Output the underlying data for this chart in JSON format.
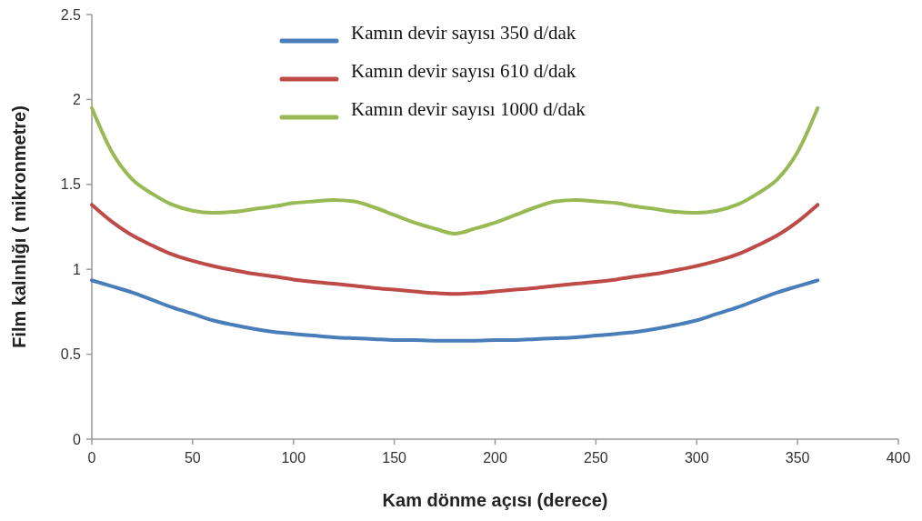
{
  "chart_data": {
    "type": "line",
    "xlabel": "Kam dönme açısı (derece)",
    "ylabel": "Film kalınlığı ( mikronmetre)",
    "x": [
      0,
      10,
      20,
      30,
      40,
      50,
      60,
      70,
      80,
      90,
      100,
      110,
      120,
      130,
      140,
      150,
      160,
      170,
      180,
      190,
      200,
      210,
      220,
      230,
      240,
      250,
      260,
      270,
      280,
      290,
      300,
      310,
      320,
      330,
      340,
      350,
      360
    ],
    "series": [
      {
        "name": "Kamın devir sayısı 350 d/dak",
        "color": "#4a7ebb",
        "values": [
          0.935,
          0.9,
          0.864,
          0.82,
          0.775,
          0.738,
          0.7,
          0.673,
          0.65,
          0.632,
          0.62,
          0.61,
          0.6,
          0.594,
          0.589,
          0.584,
          0.583,
          0.58,
          0.58,
          0.58,
          0.583,
          0.584,
          0.589,
          0.594,
          0.6,
          0.61,
          0.62,
          0.632,
          0.65,
          0.673,
          0.7,
          0.738,
          0.775,
          0.82,
          0.864,
          0.9,
          0.935
        ]
      },
      {
        "name": "Kamın devir sayısı 610 d/dak",
        "color": "#be4b48",
        "values": [
          1.38,
          1.28,
          1.2,
          1.14,
          1.087,
          1.05,
          1.02,
          0.996,
          0.974,
          0.958,
          0.94,
          0.926,
          0.915,
          0.903,
          0.89,
          0.88,
          0.87,
          0.86,
          0.855,
          0.86,
          0.87,
          0.88,
          0.89,
          0.903,
          0.915,
          0.926,
          0.94,
          0.958,
          0.974,
          0.996,
          1.02,
          1.05,
          1.087,
          1.14,
          1.2,
          1.28,
          1.38
        ]
      },
      {
        "name": "Kamın devir sayısı 1000 d/dak",
        "color": "#98b954",
        "values": [
          1.95,
          1.69,
          1.53,
          1.445,
          1.38,
          1.345,
          1.333,
          1.338,
          1.354,
          1.37,
          1.39,
          1.4,
          1.408,
          1.4,
          1.365,
          1.32,
          1.275,
          1.24,
          1.21,
          1.24,
          1.275,
          1.32,
          1.365,
          1.4,
          1.408,
          1.4,
          1.39,
          1.37,
          1.354,
          1.338,
          1.333,
          1.345,
          1.38,
          1.445,
          1.53,
          1.69,
          1.95
        ]
      }
    ],
    "xlim": [
      0,
      400
    ],
    "xticks": [
      0,
      50,
      100,
      150,
      200,
      250,
      300,
      350,
      400
    ],
    "ylim": [
      0,
      2.5
    ],
    "yticks": [
      0,
      0.5,
      1,
      1.5,
      2,
      2.5
    ],
    "legend": "top",
    "grid": false,
    "marker": "none",
    "line_style": "solid"
  }
}
